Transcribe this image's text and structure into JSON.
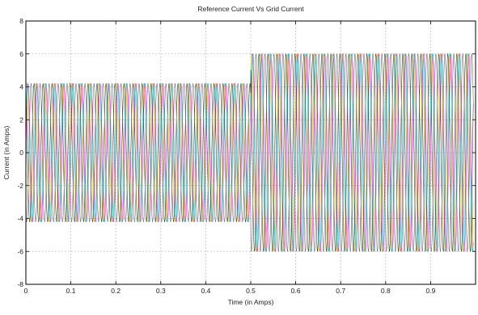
{
  "chart_data": {
    "type": "line",
    "title": "Reference Current Vs Grid Current",
    "xlabel": "Time (in Amps)",
    "ylabel": "Current (in Amps)",
    "xlim": [
      0,
      1
    ],
    "ylim": [
      -8,
      8
    ],
    "x_ticks": [
      0,
      0.1,
      0.2,
      0.3,
      0.4,
      0.5,
      0.6,
      0.7,
      0.8,
      0.9
    ],
    "x_tick_labels": [
      "0",
      "0.1",
      "0.2",
      "0.3",
      "0.4",
      "0.5",
      "0.6",
      "0.7",
      "0.8",
      "0.9"
    ],
    "y_ticks": [
      -8,
      -6,
      -4,
      -2,
      0,
      2,
      4,
      6,
      8
    ],
    "y_tick_labels": [
      "-8",
      "-6",
      "-4",
      "-2",
      "0",
      "2",
      "4",
      "6",
      "8"
    ],
    "grid": true,
    "frequency_hz": 50,
    "x_end": 0.995,
    "step_time": 0.5,
    "amplitude_before_step": 4.2,
    "amplitude_after_step": 6.0,
    "series": [
      {
        "color": "#ff00ff",
        "phase_deg": 0
      },
      {
        "color": "#00c8c8",
        "phase_deg": 25
      },
      {
        "color": "#c8c800",
        "phase_deg": 60
      },
      {
        "color": "#1a1a1a",
        "phase_deg": 120
      },
      {
        "color": "#555555",
        "phase_deg": 240
      }
    ]
  }
}
